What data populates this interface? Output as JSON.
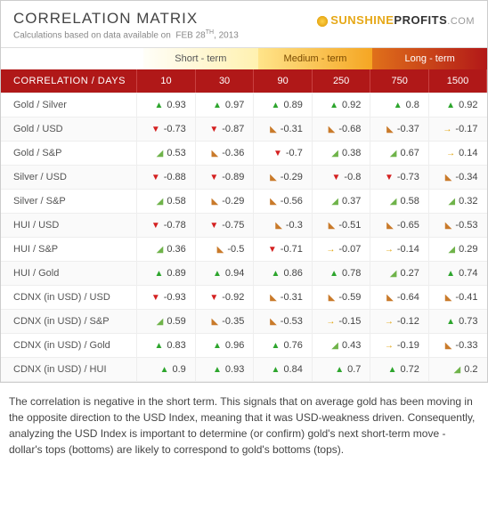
{
  "header": {
    "title": "CORRELATION MATRIX",
    "subtitle_prefix": "Calculations based on data available on",
    "date_main": "FEB 28",
    "date_suffix": "TH",
    "date_year": ", 2013",
    "brand_sun": "SUNSHINE",
    "brand_rest": "PROFITS",
    "brand_dot": ".COM"
  },
  "terms": {
    "short": "Short - term",
    "medium": "Medium - term",
    "long": "Long - term"
  },
  "columns": {
    "head": "CORRELATION / DAYS",
    "days": [
      "10",
      "30",
      "90",
      "250",
      "750",
      "1500"
    ]
  },
  "styling": {
    "header_row_bg": "#b01818",
    "header_row_text": "#ffffff",
    "row_alt_bg": "#fafafa",
    "border_color": "#eeeeee",
    "font_size_cell": 11,
    "arrow_colors": {
      "up_strong": "#2da52d",
      "up_mild": "#6fb34a",
      "dn_strong": "#d42020",
      "dn_mild": "#c97a2a",
      "flat": "#e0a000"
    },
    "term_gradient": {
      "short": [
        "#fffef8",
        "#fff1b0"
      ],
      "medium": [
        "#ffe48a",
        "#f5a623"
      ],
      "long": [
        "#e0701a",
        "#b21818"
      ]
    },
    "thresholds": {
      "flat_abs_max": 0.2,
      "strong_abs_min": 0.7
    }
  },
  "rows": [
    {
      "label": "Gold / Silver",
      "vals": [
        0.93,
        0.97,
        0.89,
        0.92,
        0.8,
        0.92
      ]
    },
    {
      "label": "Gold / USD",
      "vals": [
        -0.73,
        -0.87,
        -0.31,
        -0.68,
        -0.37,
        -0.17
      ]
    },
    {
      "label": "Gold / S&P",
      "vals": [
        0.53,
        -0.36,
        -0.7,
        0.38,
        0.67,
        0.14
      ]
    },
    {
      "label": "Silver / USD",
      "vals": [
        -0.88,
        -0.89,
        -0.29,
        -0.8,
        -0.73,
        -0.34
      ]
    },
    {
      "label": "Silver / S&P",
      "vals": [
        0.58,
        -0.29,
        -0.56,
        0.37,
        0.58,
        0.32
      ]
    },
    {
      "label": "HUI / USD",
      "vals": [
        -0.78,
        -0.75,
        -0.3,
        -0.51,
        -0.65,
        -0.53
      ]
    },
    {
      "label": "HUI / S&P",
      "vals": [
        0.36,
        -0.5,
        -0.71,
        -0.07,
        -0.14,
        0.29
      ]
    },
    {
      "label": "HUI / Gold",
      "vals": [
        0.89,
        0.94,
        0.86,
        0.78,
        0.27,
        0.74
      ]
    },
    {
      "label": "CDNX (in USD) / USD",
      "vals": [
        -0.93,
        -0.92,
        -0.31,
        -0.59,
        -0.64,
        -0.41
      ]
    },
    {
      "label": "CDNX (in USD) / S&P",
      "vals": [
        0.59,
        -0.35,
        -0.53,
        -0.15,
        -0.12,
        0.73
      ]
    },
    {
      "label": "CDNX (in USD) / Gold",
      "vals": [
        0.83,
        0.96,
        0.76,
        0.43,
        -0.19,
        -0.33
      ]
    },
    {
      "label": "CDNX (in USD) / HUI",
      "vals": [
        0.9,
        0.93,
        0.84,
        0.7,
        0.72,
        0.2
      ]
    }
  ],
  "footer": "The correlation is negative in the short term. This signals that on average gold has been moving in the opposite direction to the USD Index, meaning that it was USD-weakness driven. Consequently, analyzing the USD Index is important to determine (or confirm) gold's next short-term move - dollar's tops (bottoms) are likely to correspond to gold's bottoms (tops)."
}
